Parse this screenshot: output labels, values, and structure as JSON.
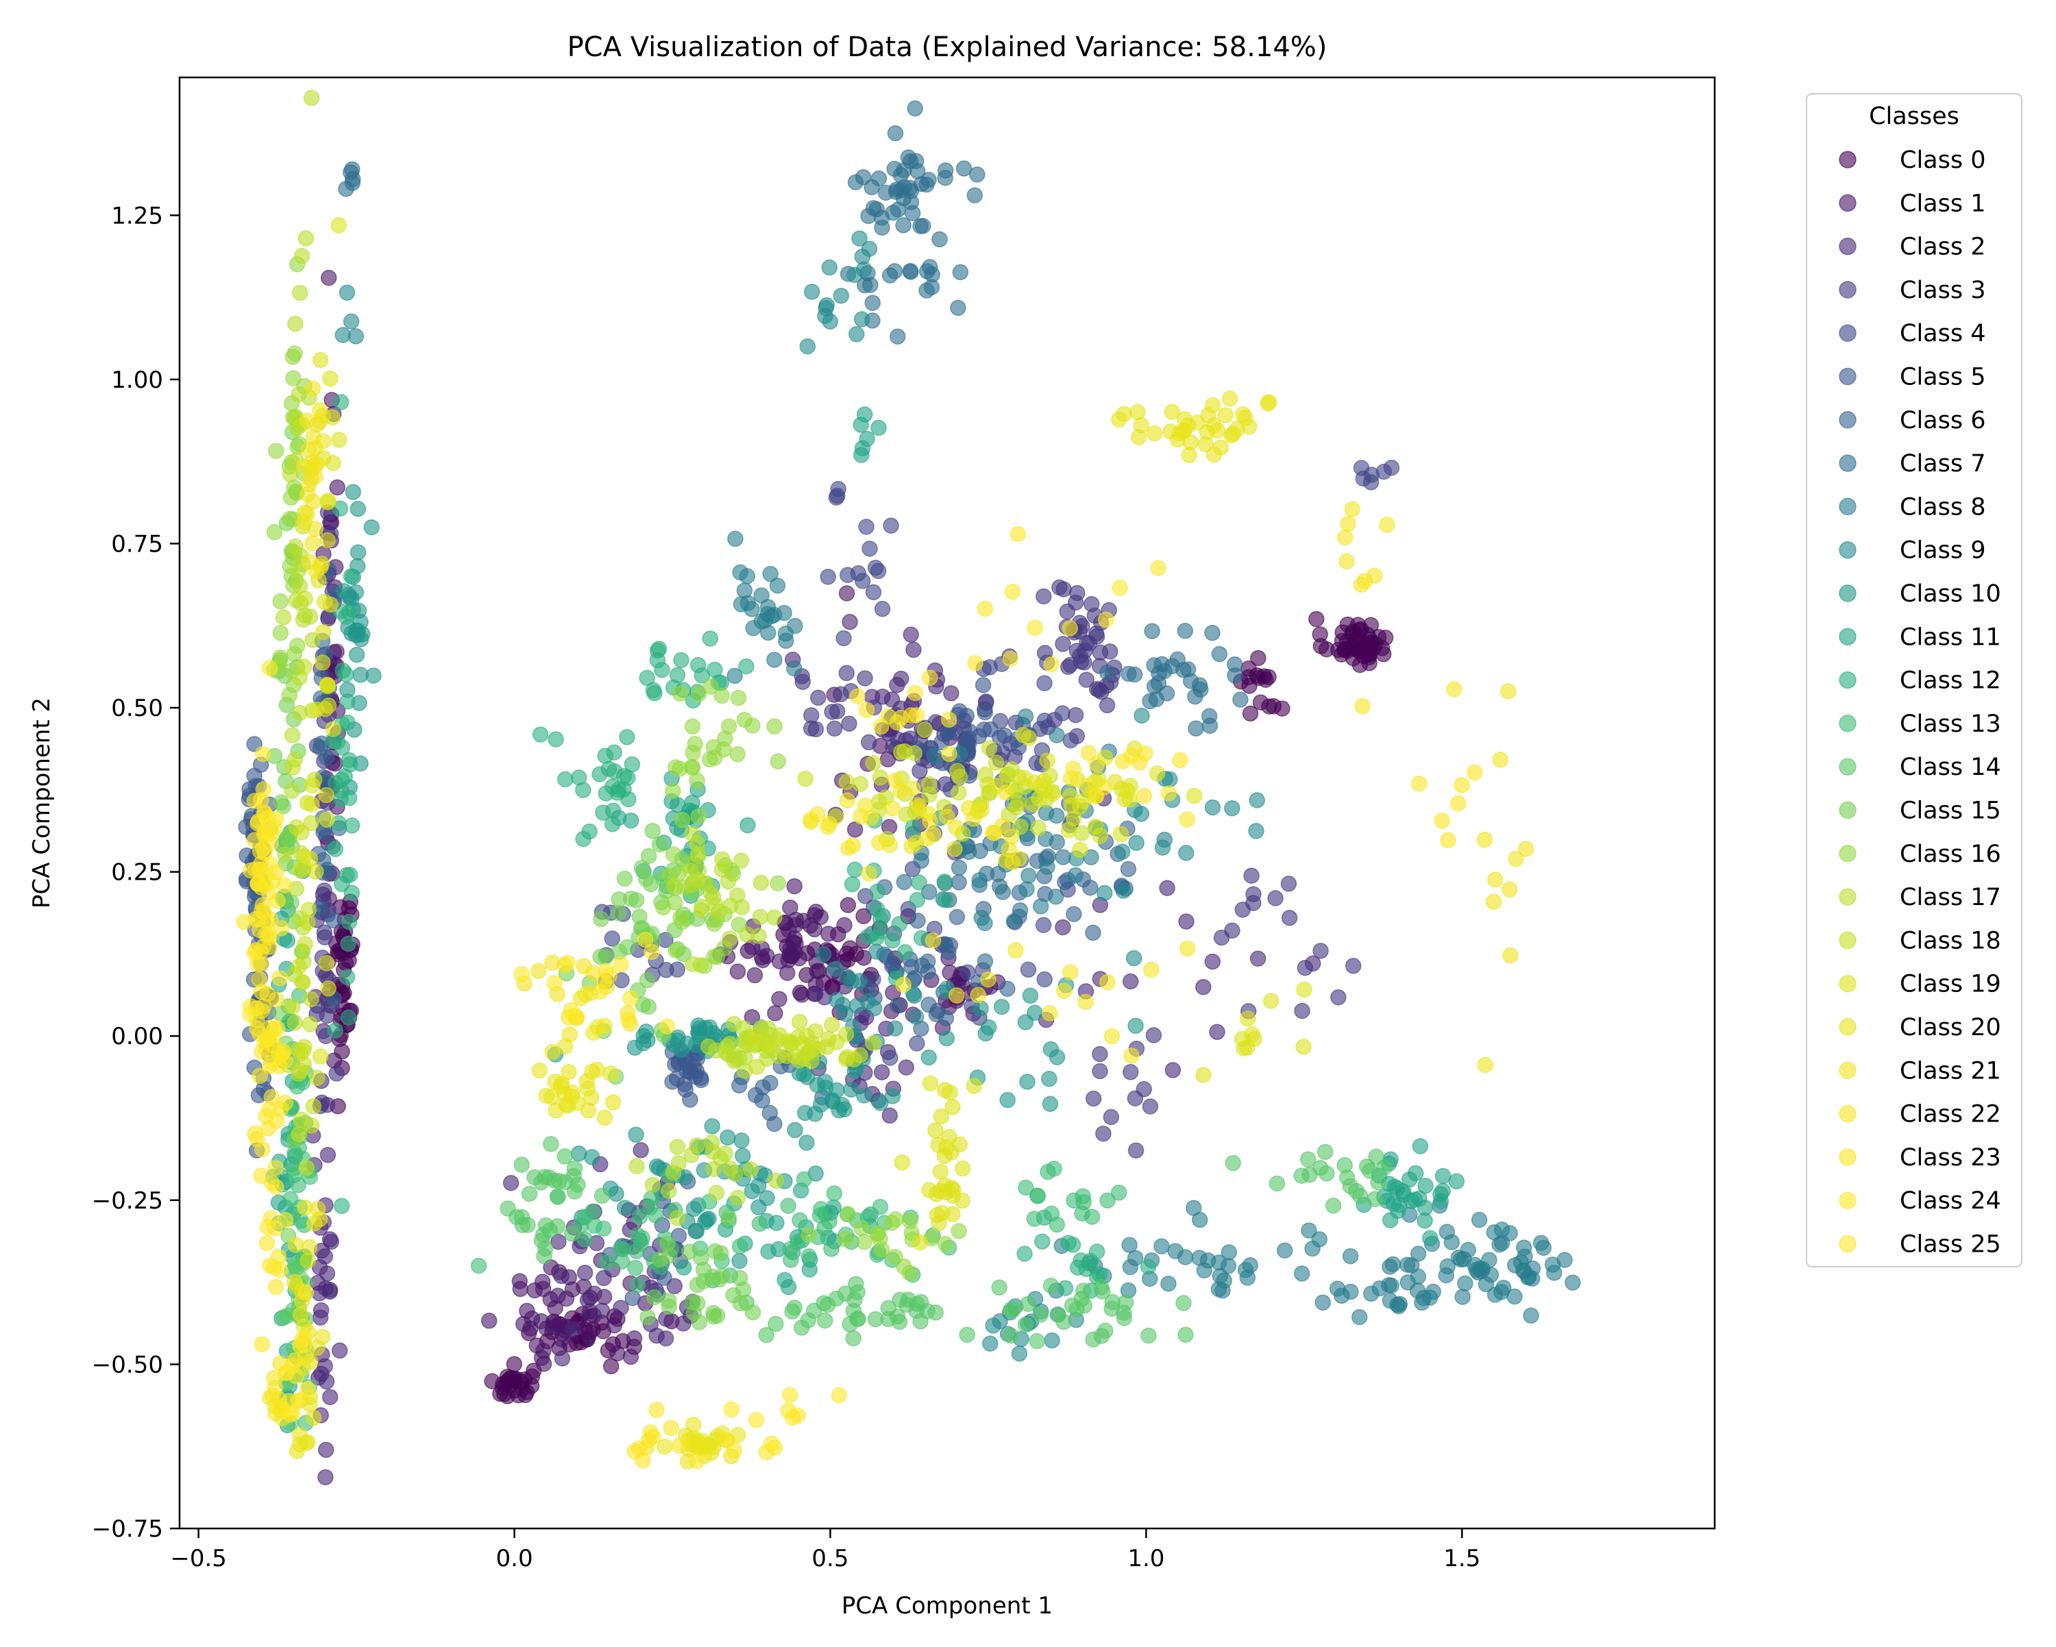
{
  "chart_data": {
    "type": "scatter",
    "title": "PCA Visualization of Data (Explained Variance: 58.14%)",
    "xlabel": "PCA Component 1",
    "ylabel": "PCA Component 2",
    "xlim": [
      -0.53,
      1.9
    ],
    "ylim": [
      -0.75,
      1.46
    ],
    "x_ticks": [
      -0.5,
      0.0,
      0.5,
      1.0,
      1.5
    ],
    "x_tick_labels": [
      "−0.5",
      "0.0",
      "0.5",
      "1.0",
      "1.5"
    ],
    "y_ticks": [
      -0.75,
      -0.5,
      -0.25,
      0.0,
      0.25,
      0.5,
      0.75,
      1.0,
      1.25
    ],
    "y_tick_labels": [
      "−0.75",
      "−0.50",
      "−0.25",
      "0.00",
      "0.25",
      "0.50",
      "0.75",
      "1.00",
      "1.25"
    ],
    "grid": false,
    "legend": {
      "title": "Classes",
      "placement": "outside-upper-right"
    },
    "colormap": "viridis",
    "marker_alpha": 0.6,
    "series": [
      {
        "name": "Class 0",
        "color": "#440154",
        "clusters": [
          [
            1.33,
            0.6,
            0.025,
            0.018,
            50
          ],
          [
            0.0,
            -0.53,
            0.015,
            0.012,
            30
          ],
          [
            0.5,
            0.12,
            0.06,
            0.04,
            40
          ],
          [
            0.12,
            -0.45,
            0.04,
            0.02,
            30
          ],
          [
            -0.27,
            0.1,
            0.008,
            0.08,
            40
          ],
          [
            1.18,
            0.54,
            0.02,
            0.04,
            15
          ]
        ]
      },
      {
        "name": "Class 1",
        "color": "#481567",
        "clusters": [
          [
            0.45,
            0.12,
            0.05,
            0.04,
            45
          ],
          [
            0.08,
            -0.42,
            0.05,
            0.04,
            45
          ],
          [
            0.7,
            0.08,
            0.04,
            0.05,
            25
          ],
          [
            -0.29,
            0.5,
            0.008,
            0.25,
            45
          ],
          [
            0.58,
            0.45,
            0.05,
            0.08,
            20
          ]
        ]
      },
      {
        "name": "Class 2",
        "color": "#482677",
        "clusters": [
          [
            0.2,
            -0.35,
            0.08,
            0.08,
            40
          ],
          [
            0.55,
            -0.05,
            0.04,
            0.06,
            20
          ],
          [
            0.63,
            0.52,
            0.07,
            0.05,
            25
          ],
          [
            -0.3,
            -0.3,
            0.008,
            0.2,
            35
          ],
          [
            1.0,
            0.12,
            0.1,
            0.08,
            15
          ]
        ]
      },
      {
        "name": "Class 3",
        "color": "#453781",
        "clusters": [
          [
            0.9,
            0.58,
            0.04,
            0.06,
            45
          ],
          [
            0.7,
            0.44,
            0.05,
            0.03,
            35
          ],
          [
            0.52,
            0.5,
            0.05,
            0.03,
            20
          ],
          [
            1.2,
            0.15,
            0.06,
            0.06,
            15
          ],
          [
            0.97,
            -0.1,
            0.03,
            0.04,
            12
          ],
          [
            -0.3,
            0.3,
            0.008,
            0.3,
            35
          ]
        ]
      },
      {
        "name": "Class 4",
        "color": "#404688",
        "clusters": [
          [
            0.7,
            0.15,
            0.08,
            0.1,
            30
          ],
          [
            0.55,
            0.75,
            0.03,
            0.08,
            15
          ],
          [
            1.36,
            0.86,
            0.01,
            0.02,
            6
          ],
          [
            0.8,
            0.48,
            0.05,
            0.05,
            20
          ],
          [
            0.2,
            0.15,
            0.05,
            0.05,
            15
          ]
        ]
      },
      {
        "name": "Class 5",
        "color": "#39568C",
        "clusters": [
          [
            -0.41,
            0.29,
            0.01,
            0.06,
            40
          ],
          [
            -0.4,
            0.05,
            0.008,
            0.08,
            30
          ],
          [
            0.28,
            -0.05,
            0.02,
            0.02,
            25
          ],
          [
            0.72,
            0.45,
            0.06,
            0.03,
            30
          ],
          [
            0.23,
            -0.3,
            0.04,
            0.05,
            20
          ]
        ]
      },
      {
        "name": "Class 6",
        "color": "#33638D",
        "clusters": [
          [
            0.65,
            0.08,
            0.05,
            0.06,
            30
          ],
          [
            0.85,
            0.25,
            0.08,
            0.06,
            30
          ],
          [
            0.4,
            -0.08,
            0.03,
            0.02,
            12
          ],
          [
            -0.3,
            0.4,
            0.008,
            0.15,
            25
          ]
        ]
      },
      {
        "name": "Class 7",
        "color": "#2D708E",
        "clusters": [
          [
            0.6,
            1.2,
            0.05,
            0.09,
            45
          ],
          [
            0.67,
            1.32,
            0.03,
            0.015,
            15
          ],
          [
            1.05,
            0.55,
            0.05,
            0.03,
            30
          ],
          [
            0.75,
            0.25,
            0.06,
            0.06,
            25
          ],
          [
            -0.26,
            1.3,
            0.006,
            0.015,
            5
          ]
        ]
      },
      {
        "name": "Class 8",
        "color": "#287D8E",
        "clusters": [
          [
            1.55,
            -0.34,
            0.06,
            0.04,
            50
          ],
          [
            1.38,
            -0.38,
            0.05,
            0.02,
            25
          ],
          [
            1.1,
            -0.34,
            0.12,
            0.03,
            35
          ],
          [
            0.82,
            0.3,
            0.08,
            0.08,
            35
          ],
          [
            0.4,
            0.65,
            0.03,
            0.05,
            25
          ]
        ]
      },
      {
        "name": "Class 9",
        "color": "#238A8D",
        "clusters": [
          [
            0.52,
            1.12,
            0.04,
            0.06,
            15
          ],
          [
            -0.26,
            1.1,
            0.006,
            0.02,
            4
          ],
          [
            1.02,
            0.3,
            0.08,
            0.06,
            20
          ],
          [
            0.55,
            0.05,
            0.05,
            0.04,
            20
          ],
          [
            0.8,
            -0.45,
            0.05,
            0.03,
            15
          ]
        ]
      },
      {
        "name": "Class 10",
        "color": "#1F968B",
        "clusters": [
          [
            0.3,
            -0.22,
            0.1,
            0.04,
            40
          ],
          [
            0.5,
            -0.08,
            0.04,
            0.03,
            25
          ],
          [
            0.3,
            0.0,
            0.06,
            0.01,
            30
          ],
          [
            -0.25,
            0.63,
            0.01,
            0.1,
            30
          ],
          [
            0.8,
            0.0,
            0.06,
            0.04,
            20
          ]
        ]
      },
      {
        "name": "Class 11",
        "color": "#20A386",
        "clusters": [
          [
            1.4,
            -0.25,
            0.04,
            0.03,
            30
          ],
          [
            0.27,
            0.3,
            0.04,
            0.05,
            30
          ],
          [
            0.45,
            -0.3,
            0.08,
            0.04,
            25
          ],
          [
            -0.36,
            -0.1,
            0.008,
            0.25,
            40
          ],
          [
            0.55,
            0.92,
            0.01,
            0.02,
            6
          ]
        ]
      },
      {
        "name": "Class 12",
        "color": "#29AF7F",
        "clusters": [
          [
            0.15,
            0.38,
            0.04,
            0.05,
            25
          ],
          [
            0.25,
            0.55,
            0.05,
            0.03,
            20
          ],
          [
            0.6,
            0.2,
            0.05,
            0.05,
            20
          ],
          [
            -0.27,
            0.4,
            0.01,
            0.3,
            35
          ],
          [
            0.9,
            -0.35,
            0.05,
            0.04,
            15
          ]
        ]
      },
      {
        "name": "Class 13",
        "color": "#3CBC75",
        "clusters": [
          [
            0.2,
            -0.3,
            0.08,
            0.05,
            35
          ],
          [
            0.5,
            -0.3,
            0.08,
            0.04,
            30
          ],
          [
            0.88,
            -0.25,
            0.04,
            0.03,
            15
          ],
          [
            -0.34,
            -0.3,
            0.01,
            0.2,
            35
          ]
        ]
      },
      {
        "name": "Class 14",
        "color": "#56C667",
        "clusters": [
          [
            0.05,
            -0.25,
            0.05,
            0.05,
            30
          ],
          [
            0.55,
            -0.42,
            0.08,
            0.02,
            35
          ],
          [
            0.85,
            -0.42,
            0.08,
            0.03,
            30
          ],
          [
            1.3,
            -0.22,
            0.06,
            0.02,
            20
          ],
          [
            -0.34,
            -0.45,
            0.01,
            0.06,
            25
          ]
        ]
      },
      {
        "name": "Class 15",
        "color": "#75D054",
        "clusters": [
          [
            0.28,
            -0.38,
            0.06,
            0.04,
            30
          ],
          [
            0.25,
            0.22,
            0.05,
            0.06,
            30
          ],
          [
            0.18,
            0.1,
            0.04,
            0.05,
            20
          ],
          [
            -0.36,
            0.3,
            0.01,
            0.3,
            35
          ]
        ]
      },
      {
        "name": "Class 16",
        "color": "#95D840",
        "clusters": [
          [
            0.3,
            0.22,
            0.05,
            0.06,
            25
          ],
          [
            0.3,
            0.45,
            0.05,
            0.05,
            25
          ],
          [
            -0.35,
            0.75,
            0.012,
            0.15,
            40
          ],
          [
            0.6,
            -0.3,
            0.06,
            0.03,
            20
          ]
        ]
      },
      {
        "name": "Class 17",
        "color": "#B8DE29",
        "clusters": [
          [
            0.33,
            0.2,
            0.05,
            0.05,
            30
          ],
          [
            0.4,
            -0.02,
            0.04,
            0.015,
            35
          ],
          [
            0.3,
            -0.2,
            0.05,
            0.04,
            20
          ],
          [
            -0.34,
            0.6,
            0.01,
            0.3,
            40
          ]
        ]
      },
      {
        "name": "Class 18",
        "color": "#C8E020",
        "clusters": [
          [
            0.6,
            0.37,
            0.07,
            0.04,
            30
          ],
          [
            0.45,
            -0.01,
            0.05,
            0.015,
            30
          ],
          [
            0.78,
            0.37,
            0.05,
            0.04,
            25
          ],
          [
            -0.33,
            0.2,
            0.01,
            0.3,
            35
          ]
        ]
      },
      {
        "name": "Class 19",
        "color": "#DCE319",
        "clusters": [
          [
            0.92,
            0.38,
            0.06,
            0.04,
            35
          ],
          [
            0.68,
            -0.2,
            0.02,
            0.08,
            30
          ],
          [
            -0.3,
            0.62,
            0.01,
            0.3,
            35
          ],
          [
            1.2,
            0.02,
            0.05,
            0.05,
            10
          ]
        ]
      },
      {
        "name": "Class 20",
        "color": "#E7E419",
        "clusters": [
          [
            1.08,
            0.93,
            0.06,
            0.02,
            35
          ],
          [
            0.08,
            -0.08,
            0.03,
            0.03,
            25
          ],
          [
            0.3,
            -0.62,
            0.03,
            0.02,
            25
          ],
          [
            -0.33,
            -0.4,
            0.01,
            0.12,
            25
          ]
        ]
      },
      {
        "name": "Class 21",
        "color": "#F0E51C",
        "clusters": [
          [
            0.1,
            0.05,
            0.04,
            0.05,
            20
          ],
          [
            0.72,
            0.3,
            0.06,
            0.05,
            20
          ],
          [
            1.57,
            0.25,
            0.02,
            0.1,
            10
          ],
          [
            -0.32,
            0.85,
            0.01,
            0.08,
            25
          ]
        ]
      },
      {
        "name": "Class 22",
        "color": "#F5E61F",
        "clusters": [
          [
            0.55,
            0.35,
            0.06,
            0.04,
            20
          ],
          [
            0.85,
            0.1,
            0.1,
            0.06,
            15
          ],
          [
            -0.37,
            -0.55,
            0.008,
            0.02,
            15
          ],
          [
            1.35,
            0.75,
            0.03,
            0.05,
            8
          ]
        ]
      },
      {
        "name": "Class 23",
        "color": "#FAE622",
        "clusters": [
          [
            -0.4,
            0.1,
            0.01,
            0.15,
            40
          ],
          [
            0.25,
            -0.62,
            0.08,
            0.02,
            15
          ],
          [
            1.45,
            0.4,
            0.05,
            0.08,
            8
          ],
          [
            0.98,
            0.4,
            0.06,
            0.03,
            15
          ]
        ]
      },
      {
        "name": "Class 24",
        "color": "#FBE723",
        "clusters": [
          [
            -0.38,
            -0.1,
            0.01,
            0.2,
            40
          ],
          [
            0.85,
            0.6,
            0.08,
            0.08,
            12
          ],
          [
            0.6,
            0.5,
            0.03,
            0.02,
            10
          ]
        ]
      },
      {
        "name": "Class 25",
        "color": "#FDE725",
        "clusters": [
          [
            -0.4,
            0.2,
            0.01,
            0.12,
            35
          ],
          [
            0.15,
            0.08,
            0.05,
            0.04,
            15
          ],
          [
            -0.35,
            -0.5,
            0.01,
            0.05,
            15
          ],
          [
            0.45,
            -0.58,
            0.05,
            0.03,
            8
          ]
        ]
      }
    ]
  }
}
